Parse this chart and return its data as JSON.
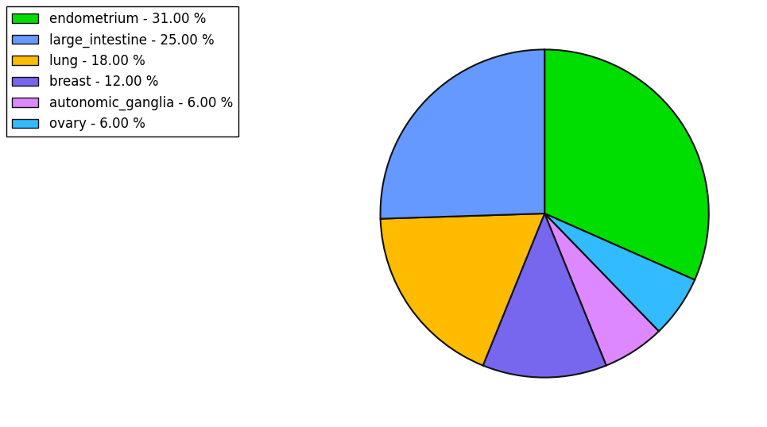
{
  "labels": [
    "endometrium",
    "ovary",
    "autonomic_ganglia",
    "breast",
    "lung",
    "large_intestine"
  ],
  "values": [
    31.0,
    6.0,
    6.0,
    12.0,
    18.0,
    25.0
  ],
  "colors": [
    "#00dd00",
    "#33bbff",
    "#dd88ff",
    "#7766ee",
    "#ffbb00",
    "#6699ff"
  ],
  "legend_labels": [
    "endometrium - 31.00 %",
    "large_intestine - 25.00 %",
    "lung - 18.00 %",
    "breast - 12.00 %",
    "autonomic_ganglia - 6.00 %",
    "ovary - 6.00 %"
  ],
  "legend_colors": [
    "#00dd00",
    "#6699ff",
    "#ffbb00",
    "#7766ee",
    "#dd88ff",
    "#33bbff"
  ],
  "startangle": 90,
  "background_color": "#ffffff",
  "legend_fontsize": 12,
  "edge_color": "#111111",
  "edge_linewidth": 1.5
}
